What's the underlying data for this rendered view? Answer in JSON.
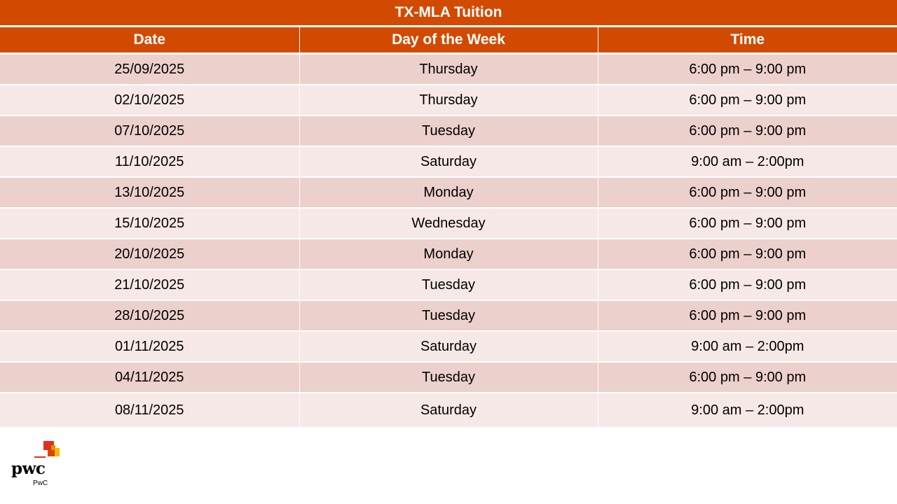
{
  "table": {
    "title": "TX-MLA Tuition",
    "headers": {
      "date": "Date",
      "day": "Day of the Week",
      "time": "Time"
    },
    "rows": [
      {
        "date": "25/09/2025",
        "day": "Thursday",
        "time": "6:00 pm – 9:00 pm"
      },
      {
        "date": "02/10/2025",
        "day": "Thursday",
        "time": "6:00 pm – 9:00 pm"
      },
      {
        "date": "07/10/2025",
        "day": "Tuesday",
        "time": "6:00 pm – 9:00 pm"
      },
      {
        "date": "11/10/2025",
        "day": "Saturday",
        "time": "9:00 am – 2:00pm"
      },
      {
        "date": "13/10/2025",
        "day": "Monday",
        "time": "6:00 pm – 9:00 pm"
      },
      {
        "date": "15/10/2025",
        "day": "Wednesday",
        "time": "6:00 pm – 9:00 pm"
      },
      {
        "date": "20/10/2025",
        "day": "Monday",
        "time": "6:00 pm – 9:00 pm"
      },
      {
        "date": "21/10/2025",
        "day": "Tuesday",
        "time": "6:00 pm – 9:00 pm"
      },
      {
        "date": "28/10/2025",
        "day": "Tuesday",
        "time": "6:00 pm – 9:00 pm"
      },
      {
        "date": "01/11/2025",
        "day": "Saturday",
        "time": "9:00 am – 2:00pm"
      },
      {
        "date": "04/11/2025",
        "day": "Tuesday",
        "time": "6:00 pm – 9:00 pm"
      },
      {
        "date": "08/11/2025",
        "day": "Saturday",
        "time": "9:00 am – 2:00pm"
      }
    ]
  },
  "logo": {
    "wordmark": "pwc",
    "caption": "PwC"
  },
  "colors": {
    "header": "#d24a02",
    "row_odd": "#ecd0cb",
    "row_even": "#f6e8e6"
  }
}
